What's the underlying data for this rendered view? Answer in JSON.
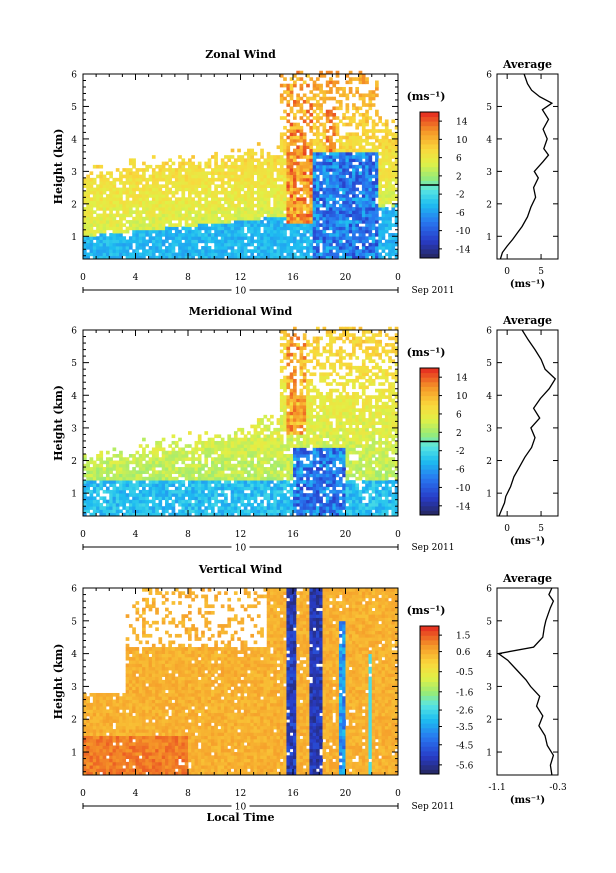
{
  "chart_data": [
    {
      "type": "heatmap",
      "title": "Zonal Wind",
      "ylabel": "Height (km)",
      "x_ticks": [
        "0",
        "4",
        "8",
        "12",
        "16",
        "20",
        "0"
      ],
      "y_ticks": [
        "1",
        "2",
        "3",
        "4",
        "5",
        "6"
      ],
      "xlim": [
        0,
        24
      ],
      "ylim": [
        0.3,
        6
      ],
      "date_day": "10",
      "date_label": "Sep 2011",
      "colorbar": {
        "unit": "(ms⁻¹)",
        "ticks": [
          "14",
          "10",
          "6",
          "2",
          "-2",
          "-6",
          "-10",
          "-14"
        ],
        "range": [
          -16,
          16
        ],
        "zero_line": 0
      },
      "profile": {
        "title": "Average",
        "xlabel": "(ms⁻¹)",
        "x_ticks": [
          "0",
          "5"
        ],
        "xlim": [
          -1.5,
          7.5
        ],
        "y_ticks": [
          "1",
          "2",
          "3",
          "4",
          "5",
          "6"
        ],
        "heights": [
          0.3,
          0.5,
          0.7,
          0.9,
          1.1,
          1.3,
          1.6,
          1.9,
          2.2,
          2.5,
          2.8,
          3.0,
          3.3,
          3.5,
          3.7,
          4.0,
          4.3,
          4.6,
          4.9,
          5.1,
          5.3,
          5.5,
          5.7,
          6.0
        ],
        "values": [
          -1.0,
          -0.7,
          0.0,
          0.8,
          1.5,
          2.2,
          3.0,
          3.5,
          4.2,
          3.9,
          4.6,
          4.0,
          5.3,
          6.1,
          5.4,
          5.9,
          5.3,
          6.1,
          5.2,
          6.6,
          4.8,
          3.6,
          3.0,
          2.5
        ]
      },
      "approx_field": {
        "data_coverage_top_km": {
          "early": 3.2,
          "peak_16_to_22h": 6.0
        },
        "low_level_easterly_km": [
          0.3,
          1.6
        ],
        "mid_level_westerly_km": [
          1.6,
          5.0
        ],
        "strong_easterly_hours": [
          17,
          22
        ],
        "max_westerly_hours": [
          15.5,
          17.5
        ]
      }
    },
    {
      "type": "heatmap",
      "title": "Meridional Wind",
      "ylabel": "Height (km)",
      "x_ticks": [
        "0",
        "4",
        "8",
        "12",
        "16",
        "20",
        "0"
      ],
      "y_ticks": [
        "1",
        "2",
        "3",
        "4",
        "5",
        "6"
      ],
      "xlim": [
        0,
        24
      ],
      "ylim": [
        0.3,
        6
      ],
      "date_day": "10",
      "date_label": "Sep 2011",
      "colorbar": {
        "unit": "(ms⁻¹)",
        "ticks": [
          "14",
          "10",
          "6",
          "2",
          "-2",
          "-6",
          "-10",
          "-14"
        ],
        "range": [
          -16,
          16
        ],
        "zero_line": 0
      },
      "profile": {
        "title": "Average",
        "xlabel": "(ms⁻¹)",
        "x_ticks": [
          "0",
          "5"
        ],
        "xlim": [
          -1.5,
          7.5
        ],
        "y_ticks": [
          "1",
          "2",
          "3",
          "4",
          "5",
          "6"
        ],
        "heights": [
          0.3,
          0.5,
          0.7,
          0.9,
          1.2,
          1.5,
          1.8,
          2.1,
          2.4,
          2.7,
          3.0,
          3.3,
          3.6,
          3.9,
          4.2,
          4.5,
          4.8,
          5.1,
          5.4,
          5.7,
          6.0
        ],
        "values": [
          -1.2,
          -0.8,
          -0.4,
          -0.2,
          0.5,
          1.0,
          1.8,
          2.6,
          3.6,
          4.1,
          3.5,
          4.8,
          3.9,
          4.9,
          6.2,
          7.1,
          5.6,
          5.0,
          4.1,
          3.1,
          2.2
        ]
      },
      "approx_field": {
        "data_coverage_top_km": {
          "early": 2.2,
          "peak_16_to_22h": 6.0
        },
        "low_level_southerly_km": [
          0.3,
          1.5
        ],
        "northerly_above_km": 1.5,
        "strong_southerly_hours": [
          16,
          20
        ]
      }
    },
    {
      "type": "heatmap",
      "title": "Vertical Wind",
      "ylabel": "Height (km)",
      "xlabel": "Local Time",
      "x_ticks": [
        "0",
        "4",
        "8",
        "12",
        "16",
        "20",
        "0"
      ],
      "y_ticks": [
        "1",
        "2",
        "3",
        "4",
        "5",
        "6"
      ],
      "xlim": [
        0,
        24
      ],
      "ylim": [
        0.3,
        6
      ],
      "date_day": "10",
      "date_label": "Sep 2011",
      "colorbar": {
        "unit": "(ms⁻¹)",
        "ticks": [
          "1.5",
          "0.6",
          "-0.5",
          "-1.6",
          "-2.6",
          "-3.5",
          "-4.5",
          "-5.6"
        ],
        "range": [
          -6.1,
          2.0
        ]
      },
      "profile": {
        "title": "Average",
        "xlabel": "(ms⁻¹)",
        "x_ticks": [
          "-1.1",
          "-0.3"
        ],
        "xlim": [
          -1.1,
          -0.3
        ],
        "y_ticks": [
          "1",
          "2",
          "3",
          "4",
          "5",
          "6"
        ],
        "heights": [
          0.3,
          0.6,
          0.9,
          1.2,
          1.5,
          1.8,
          2.1,
          2.4,
          2.7,
          3.0,
          3.2,
          3.5,
          3.8,
          4.0,
          4.2,
          4.5,
          4.8,
          5.0,
          5.2,
          5.4,
          5.6,
          5.8,
          6.0
        ],
        "values": [
          -0.38,
          -0.4,
          -0.36,
          -0.44,
          -0.47,
          -0.55,
          -0.5,
          -0.58,
          -0.54,
          -0.66,
          -0.72,
          -0.84,
          -0.96,
          -1.08,
          -0.62,
          -0.5,
          -0.48,
          -0.46,
          -0.43,
          -0.4,
          -0.36,
          -0.42,
          -0.38
        ]
      },
      "approx_field": {
        "data_coverage_top_km": {
          "early": 2.8,
          "later": 6.0
        },
        "background_value": 0.4,
        "strong_downdraft_hours": [
          [
            15.5,
            16.5
          ],
          [
            17.2,
            18.3
          ],
          [
            19.6,
            20.1
          ],
          [
            21.7,
            21.9
          ]
        ],
        "min_value": -5.8
      }
    }
  ]
}
